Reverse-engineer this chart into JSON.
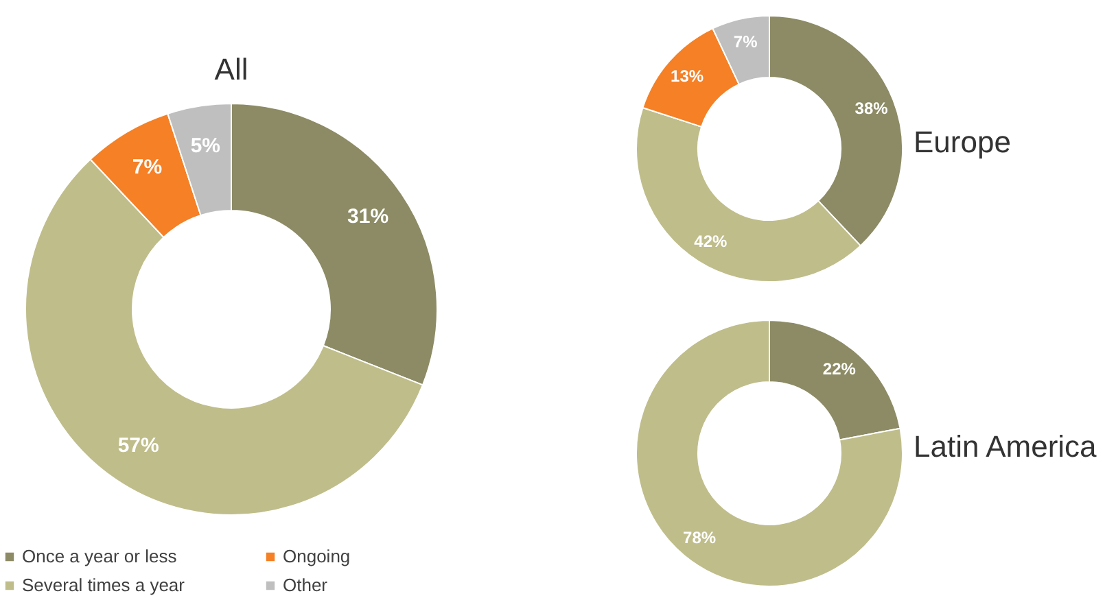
{
  "chart_data": [
    {
      "type": "donut",
      "title": "All",
      "categories": [
        "Once a year or less",
        "Several times a year",
        "Ongoing",
        "Other"
      ],
      "values": [
        31,
        57,
        7,
        5
      ],
      "colors": [
        "#8c8b65",
        "#bfbd8a",
        "#f58025",
        "#bfbfbf"
      ],
      "value_labels": [
        "31%",
        "57%",
        "7%",
        "5%"
      ],
      "legend": "bottom left"
    },
    {
      "type": "donut",
      "title": "Europe",
      "values": [
        38,
        42,
        13,
        7
      ],
      "colors": [
        "#8c8b65",
        "#bfbd8a",
        "#f58025",
        "#bfbfbf"
      ],
      "value_labels": [
        "38%",
        "42%",
        "13%",
        "7%"
      ]
    },
    {
      "type": "donut",
      "title": "Latin America",
      "values": [
        22,
        78
      ],
      "colors": [
        "#8c8b65",
        "#bfbd8a"
      ],
      "value_labels": [
        "22%",
        "78%"
      ]
    }
  ]
}
